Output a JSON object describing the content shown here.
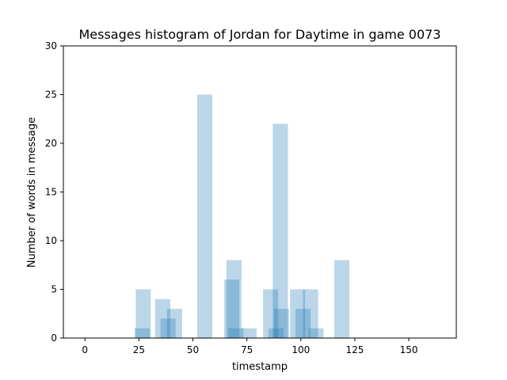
{
  "chart_data": {
    "type": "bar",
    "title": "Messages histogram of Jordan for Daytime in game 0073",
    "xlabel": "timestamp",
    "ylabel": "Number of words in message",
    "xlim": [
      -10,
      172
    ],
    "ylim": [
      0,
      30
    ],
    "xticks": [
      0,
      25,
      50,
      75,
      100,
      125,
      150
    ],
    "yticks": [
      0,
      5,
      10,
      15,
      20,
      25,
      30
    ],
    "bar_width": 7,
    "bar_color": "#1f77b4",
    "bar_opacity": 0.3,
    "grid": false,
    "bars": [
      {
        "x": 26.5,
        "value": 1
      },
      {
        "x": 27,
        "value": 5
      },
      {
        "x": 36,
        "value": 4
      },
      {
        "x": 38.5,
        "value": 2
      },
      {
        "x": 41.5,
        "value": 3
      },
      {
        "x": 55.5,
        "value": 25
      },
      {
        "x": 68,
        "value": 6
      },
      {
        "x": 69,
        "value": 8
      },
      {
        "x": 70,
        "value": 1
      },
      {
        "x": 76,
        "value": 1
      },
      {
        "x": 86,
        "value": 5
      },
      {
        "x": 88.5,
        "value": 1
      },
      {
        "x": 90.5,
        "value": 22
      },
      {
        "x": 91,
        "value": 3
      },
      {
        "x": 98.5,
        "value": 5
      },
      {
        "x": 101,
        "value": 3
      },
      {
        "x": 104.5,
        "value": 5
      },
      {
        "x": 107,
        "value": 1
      },
      {
        "x": 119,
        "value": 8
      }
    ]
  }
}
